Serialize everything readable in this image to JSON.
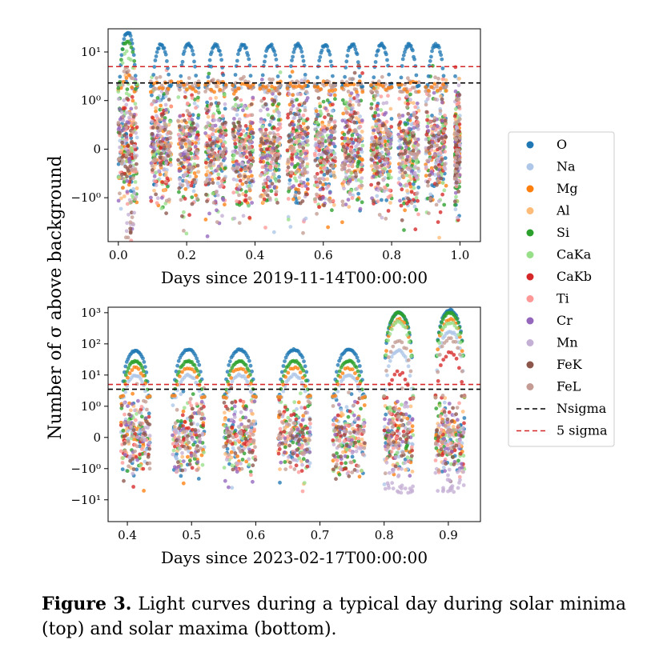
{
  "figure": {
    "ylabel": "Number of σ above background",
    "caption_label": "Figure 3.",
    "caption_text": "Light curves during a typical day during solar minima (top) and solar maxima (bottom)."
  },
  "legend": [
    {
      "name": "O",
      "color": "#1f77b4",
      "kind": "marker"
    },
    {
      "name": "Na",
      "color": "#aec7e8",
      "kind": "marker"
    },
    {
      "name": "Mg",
      "color": "#ff7f0e",
      "kind": "marker"
    },
    {
      "name": "Al",
      "color": "#ffbb78",
      "kind": "marker"
    },
    {
      "name": "Si",
      "color": "#2ca02c",
      "kind": "marker"
    },
    {
      "name": "CaKa",
      "color": "#98df8a",
      "kind": "marker"
    },
    {
      "name": "CaKb",
      "color": "#d62728",
      "kind": "marker"
    },
    {
      "name": "Ti",
      "color": "#ff9896",
      "kind": "marker"
    },
    {
      "name": "Cr",
      "color": "#9467bd",
      "kind": "marker"
    },
    {
      "name": "Mn",
      "color": "#c5b0d5",
      "kind": "marker"
    },
    {
      "name": "FeK",
      "color": "#8c564b",
      "kind": "marker"
    },
    {
      "name": "FeL",
      "color": "#c49c94",
      "kind": "marker"
    },
    {
      "name": "Nsigma",
      "color": "#000000",
      "kind": "dashed-line"
    },
    {
      "name": "5 sigma",
      "color": "#d62728",
      "kind": "dashed-line"
    }
  ],
  "chart_data": [
    {
      "type": "scatter",
      "panel": "top (solar minima)",
      "xlabel": "Days since 2019-11-14T00:00:00",
      "ylabel": "Number of σ above background",
      "yscale": "symlog",
      "xlim": [
        -0.03,
        1.06
      ],
      "ylim": [
        -8,
        30
      ],
      "xticks": [
        0.0,
        0.2,
        0.4,
        0.6,
        0.8,
        1.0
      ],
      "xtick_labels": [
        "0.0",
        "0.2",
        "0.4",
        "0.6",
        "0.8",
        "1.0"
      ],
      "yticks": [
        -1,
        0,
        1,
        10
      ],
      "ytick_labels": [
        "−10⁰",
        "0",
        "10⁰",
        "10¹"
      ],
      "hlines": [
        {
          "name": "Nsigma",
          "y": 2.3,
          "color": "#000000"
        },
        {
          "name": "5 sigma",
          "y": 5,
          "color": "#d62728"
        }
      ],
      "passes": [
        {
          "x_start": 0.0,
          "x_end": 0.055,
          "O_peak": 25,
          "noise_spread": 1.0
        },
        {
          "x_start": 0.095,
          "x_end": 0.155,
          "O_peak": 14,
          "noise_spread": 1.0
        },
        {
          "x_start": 0.175,
          "x_end": 0.235,
          "O_peak": 14,
          "noise_spread": 1.0
        },
        {
          "x_start": 0.255,
          "x_end": 0.315,
          "O_peak": 14,
          "noise_spread": 1.0
        },
        {
          "x_start": 0.335,
          "x_end": 0.395,
          "O_peak": 14,
          "noise_spread": 1.0
        },
        {
          "x_start": 0.415,
          "x_end": 0.475,
          "O_peak": 14,
          "noise_spread": 1.0
        },
        {
          "x_start": 0.495,
          "x_end": 0.555,
          "O_peak": 14,
          "noise_spread": 1.0
        },
        {
          "x_start": 0.575,
          "x_end": 0.635,
          "O_peak": 14,
          "noise_spread": 1.0
        },
        {
          "x_start": 0.655,
          "x_end": 0.715,
          "O_peak": 14,
          "noise_spread": 1.0
        },
        {
          "x_start": 0.74,
          "x_end": 0.8,
          "O_peak": 14,
          "noise_spread": 1.0
        },
        {
          "x_start": 0.82,
          "x_end": 0.88,
          "O_peak": 14,
          "noise_spread": 1.0
        },
        {
          "x_start": 0.9,
          "x_end": 0.96,
          "O_peak": 14,
          "noise_spread": 1.0
        },
        {
          "x_start": 0.985,
          "x_end": 1.0,
          "O_peak": 0,
          "noise_spread": 0.8
        }
      ]
    },
    {
      "type": "scatter",
      "panel": "bottom (solar maxima)",
      "xlabel": "Days since 2023-02-17T00:00:00",
      "ylabel": "Number of σ above background",
      "yscale": "symlog",
      "xlim": [
        0.37,
        0.95
      ],
      "ylim": [
        -50,
        1500
      ],
      "xticks": [
        0.4,
        0.5,
        0.6,
        0.7,
        0.8,
        0.9
      ],
      "xtick_labels": [
        "0.4",
        "0.5",
        "0.6",
        "0.7",
        "0.8",
        "0.9"
      ],
      "yticks": [
        -10,
        -1,
        0,
        1,
        10,
        100,
        1000
      ],
      "ytick_labels": [
        "−10¹",
        "−10⁰",
        "0",
        "10⁰",
        "10¹",
        "10²",
        "10³"
      ],
      "hlines": [
        {
          "name": "Nsigma",
          "y": 3.5,
          "color": "#000000"
        },
        {
          "name": "5 sigma",
          "y": 5,
          "color": "#d62728"
        }
      ],
      "passes": [
        {
          "x_start": 0.39,
          "x_end": 0.435,
          "O_peak": 60,
          "Si_peak": 28,
          "Na_peak": 10
        },
        {
          "x_start": 0.47,
          "x_end": 0.52,
          "O_peak": 65,
          "Si_peak": 28,
          "Na_peak": 10
        },
        {
          "x_start": 0.55,
          "x_end": 0.6,
          "O_peak": 65,
          "Si_peak": 28,
          "Na_peak": 10
        },
        {
          "x_start": 0.635,
          "x_end": 0.685,
          "O_peak": 65,
          "Si_peak": 28,
          "Na_peak": 10
        },
        {
          "x_start": 0.72,
          "x_end": 0.77,
          "O_peak": 65,
          "Si_peak": 28,
          "Na_peak": 10
        },
        {
          "x_start": 0.8,
          "x_end": 0.845,
          "O_peak": 1000,
          "Si_peak": 1000,
          "Na_peak": 60,
          "flare": true
        },
        {
          "x_start": 0.88,
          "x_end": 0.925,
          "O_peak": 1200,
          "Si_peak": 1000,
          "Na_peak": 250,
          "flare": true
        }
      ]
    }
  ]
}
